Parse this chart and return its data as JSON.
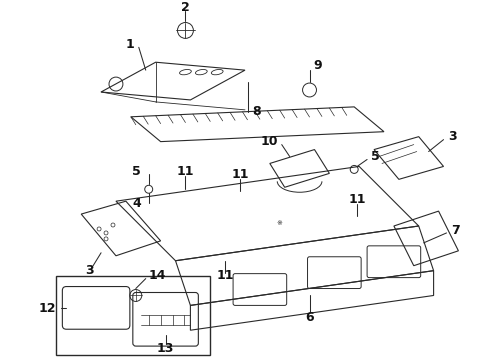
{
  "bg_color": "#ffffff",
  "line_color": "#2a2a2a",
  "label_color": "#111111",
  "font_size": 8.5,
  "bold_font": true
}
